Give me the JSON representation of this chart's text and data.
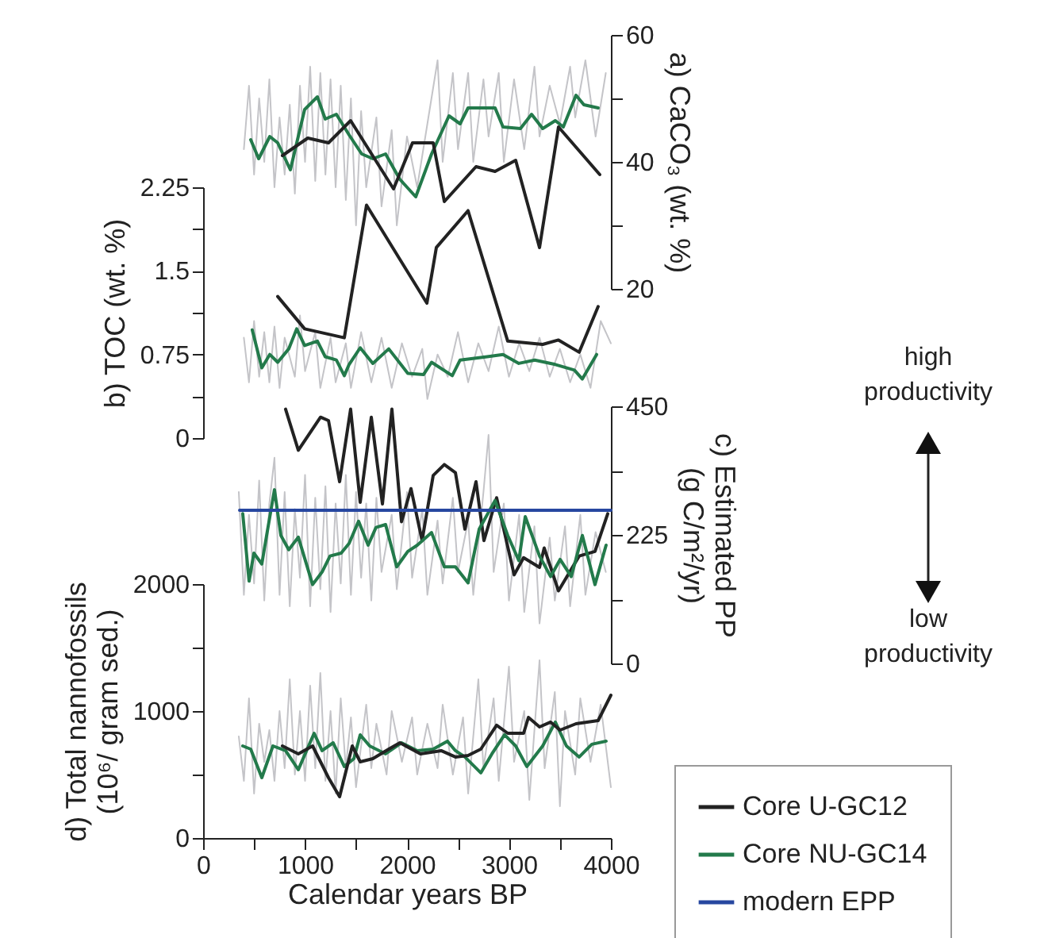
{
  "chart_data": [
    {
      "type": "line",
      "ylabel": "a) CaCO₃ (wt. %)",
      "tick_labels": "y",
      "xlim": [
        0,
        4000
      ],
      "ylim": [
        20,
        60
      ],
      "yticks": [
        20,
        {
          "value": 30,
          "label": null
        },
        40,
        {
          "value": 50,
          "label": null
        },
        60
      ],
      "series": [
        {
          "color": "#c4c4c8",
          "x": [
            400,
            450,
            500,
            550,
            600,
            650,
            700,
            750,
            800,
            850,
            900,
            950,
            1000,
            1050,
            1100,
            1150,
            1200,
            1250,
            1300,
            1350,
            1400,
            1450,
            1500,
            1550,
            1600,
            1700,
            1750,
            1850,
            1900,
            2000,
            2100,
            2200,
            2300,
            2350,
            2450,
            2500,
            2600,
            2650,
            2750,
            2800,
            2900,
            2950,
            3050,
            3150,
            3250,
            3300,
            3400,
            3500,
            3600,
            3650,
            3750,
            3850,
            3950
          ],
          "values": [
            42,
            52,
            38,
            50,
            40,
            53,
            36,
            47,
            38,
            49,
            35,
            52,
            40,
            55,
            37,
            54,
            38,
            53,
            36,
            52,
            34,
            50,
            30,
            48,
            36,
            47,
            33,
            45,
            30,
            44,
            36,
            46,
            56,
            40,
            54,
            42,
            54,
            40,
            53,
            44,
            54,
            40,
            53,
            42,
            55,
            44,
            52,
            46,
            55,
            47,
            56,
            44,
            54
          ]
        },
        {
          "color": "#237a4b",
          "x": [
            467,
            545,
            654,
            732,
            856,
            996,
            1121,
            1198,
            1307,
            1432,
            1556,
            1665,
            1790,
            1930,
            2086,
            2241,
            2412,
            2521,
            2599,
            2864,
            2942,
            3113,
            3222,
            3331,
            3455,
            3533,
            3658,
            3735,
            3875
          ],
          "values": [
            43.5,
            40.5,
            44,
            43,
            38.75,
            48.25,
            50.25,
            46.75,
            47.5,
            44.25,
            41.25,
            40.5,
            41.25,
            37.25,
            34.5,
            41.25,
            47.25,
            46,
            48.5,
            48.5,
            45.5,
            45.25,
            47.5,
            45.25,
            46.5,
            45.5,
            50.5,
            49,
            48.5
          ]
        },
        {
          "color": "#222222",
          "x": [
            778,
            1027,
            1230,
            1447,
            1868,
            2054,
            2257,
            2366,
            2677,
            2864,
            3066,
            3300,
            3486,
            3891
          ],
          "values": [
            41,
            43.75,
            43,
            46.5,
            35.75,
            43,
            43,
            33.75,
            39.25,
            38.5,
            40.25,
            26.5,
            45.5,
            38
          ]
        }
      ]
    },
    {
      "type": "line",
      "ylabel": "b) TOC (wt. %)",
      "tick_labels": "y",
      "xlim": [
        0,
        4000
      ],
      "ylim": [
        0,
        2.25
      ],
      "yticks": [
        0,
        {
          "value": 0.375,
          "label": null
        },
        0.75,
        {
          "value": 1.125,
          "label": null
        },
        1.5,
        {
          "value": 1.875,
          "label": null
        },
        2.25
      ],
      "series": [
        {
          "color": "#c4c4c8",
          "x": [
            400,
            450,
            500,
            550,
            600,
            650,
            700,
            750,
            800,
            900,
            950,
            1000,
            1100,
            1150,
            1250,
            1300,
            1400,
            1450,
            1550,
            1650,
            1750,
            1850,
            1950,
            2050,
            2150,
            2200,
            2300,
            2400,
            2500,
            2600,
            2700,
            2800,
            2900,
            3000,
            3100,
            3200,
            3300,
            3400,
            3500,
            3600,
            3700,
            3800,
            3900,
            4000
          ],
          "values": [
            0.9,
            0.5,
            1.05,
            0.55,
            0.95,
            0.5,
            1.0,
            0.45,
            0.9,
            0.55,
            1.1,
            0.6,
            0.95,
            0.45,
            0.9,
            0.5,
            0.85,
            0.45,
            0.95,
            0.5,
            0.9,
            0.45,
            0.85,
            0.55,
            0.8,
            0.35,
            0.75,
            0.55,
            0.95,
            0.5,
            0.85,
            0.6,
            1.0,
            0.55,
            0.85,
            0.6,
            0.9,
            0.55,
            0.8,
            0.5,
            0.75,
            0.45,
            1.05,
            0.85
          ]
        },
        {
          "color": "#237a4b",
          "x": [
            482,
            576,
            654,
            732,
            840,
            918,
            996,
            1121,
            1198,
            1307,
            1385,
            1432,
            1541,
            1665,
            1821,
            2008,
            2163,
            2241,
            2444,
            2521,
            2786,
            2942,
            3097,
            3253,
            3455,
            3642,
            3720,
            3860
          ],
          "values": [
            0.97,
            0.63,
            0.75,
            0.68,
            0.8,
            0.98,
            0.83,
            0.87,
            0.73,
            0.7,
            0.56,
            0.66,
            0.81,
            0.67,
            0.8,
            0.58,
            0.57,
            0.68,
            0.56,
            0.7,
            0.73,
            0.75,
            0.67,
            0.7,
            0.66,
            0.61,
            0.53,
            0.75
          ]
        },
        {
          "color": "#222222",
          "x": [
            732,
            996,
            1385,
            1603,
            2195,
            2288,
            2599,
            2988,
            3331,
            3486,
            3689,
            3875
          ],
          "values": [
            1.27,
            0.98,
            0.9,
            2.09,
            1.21,
            1.71,
            2.04,
            0.87,
            0.84,
            0.88,
            0.77,
            1.18
          ]
        }
      ]
    },
    {
      "type": "line",
      "ylabel": "c) Estimated PP\n(g C/m²/yr)",
      "tick_labels": "y",
      "xlim": [
        0,
        4000
      ],
      "ylim": [
        0,
        450
      ],
      "yticks": [
        0,
        {
          "value": 112.5,
          "label": null
        },
        225,
        {
          "value": 337.5,
          "label": null
        },
        450
      ],
      "legend": "bottom right",
      "annotations": [
        "high productivity",
        "low productivity"
      ],
      "series": [
        {
          "color": "#c4c4c8",
          "x": [
            350,
            400,
            450,
            500,
            550,
            600,
            650,
            700,
            750,
            800,
            850,
            900,
            950,
            1000,
            1050,
            1100,
            1150,
            1200,
            1250,
            1300,
            1350,
            1400,
            1450,
            1500,
            1550,
            1600,
            1650,
            1700,
            1750,
            1850,
            1900,
            2000,
            2050,
            2150,
            2200,
            2300,
            2350,
            2450,
            2500,
            2600,
            2650,
            2750,
            2800,
            2850,
            2950,
            3000,
            3100,
            3150,
            3250,
            3300,
            3400,
            3450,
            3550,
            3600,
            3700,
            3750,
            3850,
            3950
          ],
          "values": [
            300,
            120,
            260,
            140,
            320,
            110,
            280,
            360,
            120,
            300,
            100,
            270,
            150,
            330,
            100,
            290,
            130,
            310,
            90,
            280,
            140,
            330,
            120,
            300,
            150,
            280,
            110,
            290,
            160,
            260,
            130,
            300,
            150,
            270,
            120,
            250,
            140,
            290,
            160,
            250,
            120,
            300,
            400,
            160,
            280,
            110,
            260,
            90,
            240,
            70,
            220,
            110,
            240,
            100,
            260,
            120,
            230,
            160
          ]
        },
        {
          "name": "Core U-GC12",
          "color": "#222222",
          "x": [
            809,
            934,
            1152,
            1230,
            1339,
            1447,
            1541,
            1650,
            1759,
            1852,
            1946,
            2039,
            2148,
            2257,
            2366,
            2475,
            2568,
            2677,
            2755,
            2879,
            3051,
            3144,
            3300,
            3346,
            3486,
            3689,
            3844,
            3969
          ],
          "values": [
            445,
            373,
            431,
            425,
            318,
            445,
            282,
            431,
            279,
            445,
            248,
            306,
            215,
            329,
            348,
            334,
            235,
            318,
            215,
            290,
            155,
            185,
            168,
            202,
            127,
            188,
            196,
            262
          ]
        },
        {
          "name": "Core NU-GC14",
          "color": "#237a4b",
          "x": [
            389,
            451,
            498,
            576,
            623,
            700,
            763,
            840,
            934,
            1074,
            1167,
            1245,
            1354,
            1432,
            1525,
            1619,
            1696,
            1790,
            1899,
            2008,
            2101,
            2241,
            2366,
            2475,
            2599,
            2708,
            2864,
            2988,
            3097,
            3160,
            3300,
            3409,
            3502,
            3611,
            3720,
            3844,
            3953
          ],
          "values": [
            262,
            144,
            193,
            174,
            224,
            304,
            224,
            199,
            221,
            138,
            160,
            188,
            193,
            210,
            249,
            207,
            238,
            243,
            169,
            196,
            207,
            229,
            169,
            169,
            141,
            235,
            285,
            224,
            180,
            257,
            188,
            152,
            182,
            152,
            224,
            138,
            207
          ]
        },
        {
          "name": "modern EPP",
          "color": "#2747a0",
          "x": [
            358,
            4000
          ],
          "values": [
            268,
            268
          ]
        }
      ]
    },
    {
      "type": "line",
      "xlabel": "Calendar years BP",
      "ylabel": "d) Total nannofossils\n(10⁶/ gram sed.)",
      "xlim": [
        0,
        4000
      ],
      "xticks": [
        0,
        {
          "value": 500,
          "label": null
        },
        1000,
        {
          "value": 1500,
          "label": null
        },
        2000,
        {
          "value": 2500,
          "label": null
        },
        3000,
        {
          "value": 3500,
          "label": null
        },
        4000
      ],
      "ylim": [
        0,
        2000
      ],
      "yticks": [
        0,
        {
          "value": 500,
          "label": null
        },
        1000,
        {
          "value": 1500,
          "label": null
        },
        2000
      ],
      "series": [
        {
          "color": "#c4c4c8",
          "x": [
            350,
            400,
            450,
            500,
            550,
            600,
            650,
            700,
            750,
            800,
            850,
            900,
            950,
            1000,
            1050,
            1100,
            1150,
            1200,
            1250,
            1300,
            1350,
            1400,
            1450,
            1500,
            1600,
            1650,
            1700,
            1800,
            1850,
            1950,
            2050,
            2100,
            2200,
            2300,
            2350,
            2450,
            2550,
            2600,
            2700,
            2750,
            2850,
            2900,
            3000,
            3050,
            3150,
            3200,
            3300,
            3350,
            3450,
            3500,
            3550,
            3650,
            3700,
            3800,
            3900,
            4000
          ],
          "values": [
            800,
            450,
            1100,
            350,
            900,
            600,
            850,
            450,
            1000,
            550,
            1250,
            500,
            1000,
            450,
            1200,
            550,
            1300,
            450,
            1000,
            350,
            1100,
            550,
            950,
            400,
            1050,
            550,
            900,
            500,
            1000,
            600,
            950,
            500,
            900,
            550,
            1050,
            500,
            950,
            350,
            1250,
            550,
            1100,
            450,
            1350,
            600,
            1000,
            300,
            1400,
            550,
            1150,
            250,
            1000,
            500,
            1100,
            600,
            1050,
            400
          ]
        },
        {
          "color": "#237a4b",
          "x": [
            389,
            467,
            576,
            685,
            809,
            934,
            1089,
            1167,
            1276,
            1385,
            1479,
            1541,
            1634,
            1790,
            1946,
            2101,
            2257,
            2397,
            2475,
            2568,
            2724,
            2833,
            2957,
            3066,
            3175,
            3331,
            3455,
            3564,
            3689,
            3813,
            3953
          ],
          "values": [
            725,
            700,
            475,
            725,
            688,
            538,
            825,
            688,
            750,
            563,
            625,
            813,
            725,
            663,
            750,
            688,
            700,
            763,
            688,
            638,
            513,
            663,
            813,
            725,
            563,
            725,
            913,
            725,
            638,
            738,
            763
          ]
        },
        {
          "color": "#222222",
          "x": [
            778,
            934,
            1074,
            1230,
            1339,
            1463,
            1541,
            1665,
            1821,
            1930,
            2132,
            2335,
            2475,
            2599,
            2724,
            2879,
            2988,
            3144,
            3191,
            3300,
            3409,
            3502,
            3658,
            3875,
            4000
          ],
          "values": [
            725,
            663,
            725,
            475,
            325,
            725,
            600,
            625,
            700,
            750,
            663,
            688,
            638,
            650,
            700,
            888,
            825,
            825,
            950,
            875,
            913,
            850,
            900,
            925,
            1125
          ]
        }
      ]
    }
  ]
}
